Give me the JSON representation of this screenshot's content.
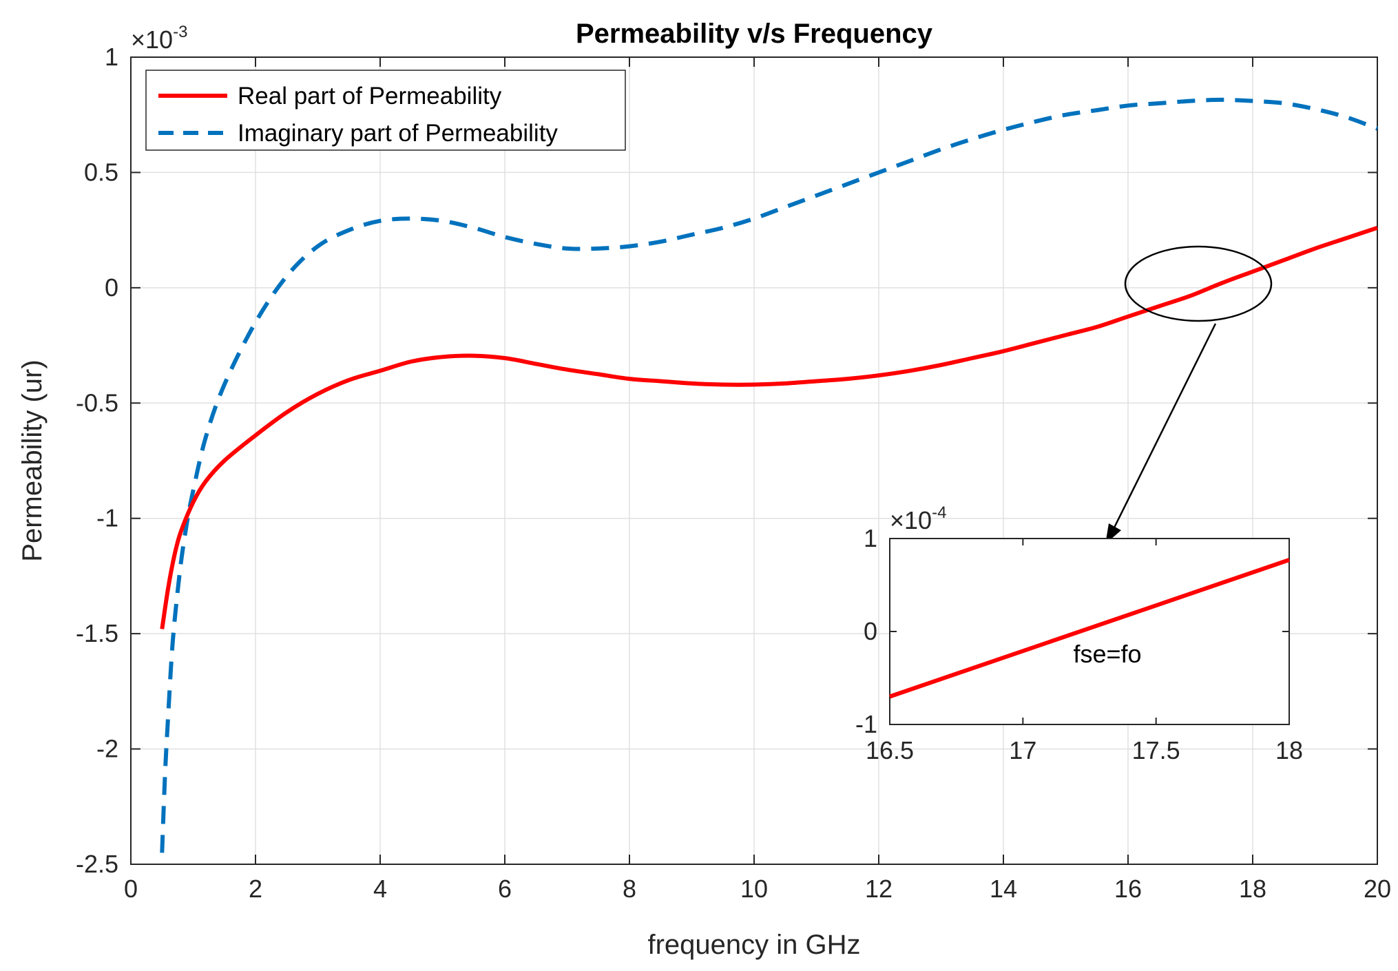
{
  "chart_data": {
    "type": "line",
    "title": "Permeability v/s Frequency",
    "xlabel": "frequency in GHz",
    "ylabel": "Permeability (ur)",
    "xlim": [
      0,
      20
    ],
    "ylim": [
      -2.5,
      1
    ],
    "xticks": [
      0,
      2,
      4,
      6,
      8,
      10,
      12,
      14,
      16,
      18,
      20
    ],
    "yticks": [
      1,
      0.5,
      0,
      -0.5,
      -1,
      -1.5,
      -2,
      -2.5
    ],
    "y_exponent_base": "×10",
    "y_exponent_power": "-3",
    "grid": true,
    "legend_location": "top-left",
    "series": [
      {
        "name": "Real part of Permeability",
        "color": "#ff0000",
        "style": "solid",
        "x": [
          0.5,
          0.6,
          0.7,
          0.8,
          1.0,
          1.2,
          1.5,
          2.0,
          2.5,
          3.0,
          3.5,
          4.0,
          4.5,
          5.0,
          5.5,
          6.0,
          6.5,
          7.0,
          7.5,
          8.0,
          8.5,
          9.0,
          9.5,
          10.0,
          10.5,
          11.0,
          11.5,
          12.0,
          12.5,
          13.0,
          13.5,
          14.0,
          14.5,
          15.0,
          15.5,
          16.0,
          16.5,
          17.0,
          17.5,
          18.0,
          18.5,
          19.0,
          19.5,
          20.0
        ],
        "y": [
          -1.48,
          -1.3,
          -1.16,
          -1.06,
          -0.93,
          -0.84,
          -0.75,
          -0.64,
          -0.54,
          -0.46,
          -0.4,
          -0.36,
          -0.32,
          -0.3,
          -0.295,
          -0.305,
          -0.33,
          -0.355,
          -0.375,
          -0.395,
          -0.405,
          -0.415,
          -0.42,
          -0.42,
          -0.415,
          -0.405,
          -0.395,
          -0.38,
          -0.36,
          -0.335,
          -0.305,
          -0.275,
          -0.24,
          -0.205,
          -0.17,
          -0.125,
          -0.08,
          -0.035,
          0.02,
          0.07,
          0.12,
          0.17,
          0.215,
          0.26
        ]
      },
      {
        "name": "Imaginary part of Permeability",
        "color": "#0072bd",
        "style": "dashed",
        "x": [
          0.5,
          0.55,
          0.6,
          0.65,
          0.7,
          0.8,
          0.9,
          1.0,
          1.2,
          1.5,
          2.0,
          2.5,
          3.0,
          3.5,
          4.0,
          4.5,
          5.0,
          5.5,
          6.0,
          6.5,
          7.0,
          7.5,
          8.0,
          8.5,
          9.0,
          9.5,
          10.0,
          10.5,
          11.0,
          11.5,
          12.0,
          12.5,
          13.0,
          13.5,
          14.0,
          14.5,
          15.0,
          15.5,
          16.0,
          16.5,
          17.0,
          17.5,
          18.0,
          18.5,
          19.0,
          19.5,
          20.0
        ],
        "y": [
          -2.45,
          -2.1,
          -1.85,
          -1.62,
          -1.45,
          -1.2,
          -1.02,
          -0.88,
          -0.65,
          -0.42,
          -0.15,
          0.05,
          0.18,
          0.25,
          0.29,
          0.3,
          0.29,
          0.26,
          0.22,
          0.19,
          0.17,
          0.17,
          0.18,
          0.2,
          0.23,
          0.26,
          0.3,
          0.35,
          0.4,
          0.45,
          0.5,
          0.55,
          0.6,
          0.645,
          0.685,
          0.72,
          0.75,
          0.77,
          0.79,
          0.8,
          0.81,
          0.815,
          0.81,
          0.8,
          0.775,
          0.74,
          0.69
        ]
      }
    ],
    "inset": {
      "xlim": [
        16.5,
        18
      ],
      "ylim": [
        -1,
        1
      ],
      "xticks": [
        16.5,
        17,
        17.5,
        18
      ],
      "yticks": [
        1,
        0,
        -1
      ],
      "y_exponent_base": "×10",
      "y_exponent_power": "-4",
      "series": [
        {
          "name": "Real part of Permeability",
          "color": "#ff0000",
          "x": [
            16.5,
            18
          ],
          "y": [
            -0.7,
            0.77
          ]
        }
      ],
      "annotation": "fse=fo"
    }
  }
}
